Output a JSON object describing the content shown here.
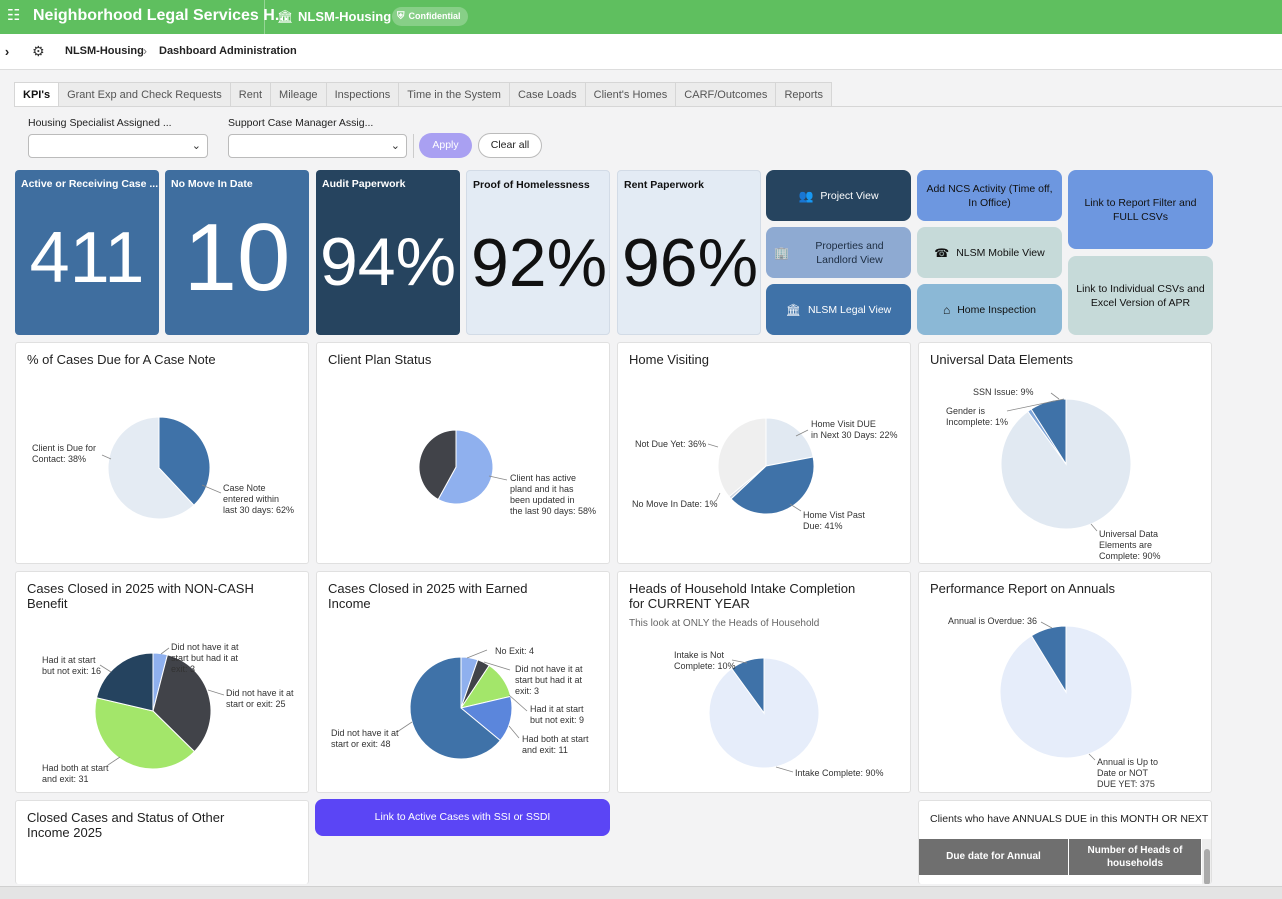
{
  "topbar": {
    "app_title": "Neighborhood Legal Services H...",
    "workspace": "NLSM-Housing",
    "badge": "Confidential",
    "brand_color": "#5fbf5f"
  },
  "nav": {
    "breadcrumb_app": "NLSM-Housing",
    "breadcrumb_page": "Dashboard Administration"
  },
  "tabs": [
    "KPI's",
    "Grant Exp and Check Requests",
    "Rent",
    "Mileage",
    "Inspections",
    "Time in the System",
    "Case Loads",
    "Client's Homes",
    "CARF/Outcomes",
    "Reports"
  ],
  "filters": {
    "housing_label": "Housing Specialist Assigned ...",
    "case_manager_label": "Support Case Manager Assig...",
    "apply": "Apply",
    "clear": "Clear all"
  },
  "kpis": [
    {
      "label": "Active or Receiving Case ...",
      "value": "411"
    },
    {
      "label": "No Move In Date",
      "value": "10"
    },
    {
      "label": "Audit Paperwork",
      "value": "94%"
    },
    {
      "label": "Proof of Homelessness",
      "value": "92%"
    },
    {
      "label": "Rent Paperwork",
      "value": "96%"
    }
  ],
  "nav_buttons": {
    "project_view": "Project View",
    "properties_view": "Properties and Landlord View",
    "legal_view": "NLSM Legal View",
    "add_ncs": "Add NCS Activity (Time off, In Office)",
    "mobile_view": "NLSM Mobile View",
    "home_inspection": "Home Inspection",
    "report_filter": "Link to Report Filter and FULL CSVs",
    "individual_csvs": "Link to Individual CSVs and Excel Version of APR"
  },
  "cards": {
    "case_note": {
      "title": "% of Cases Due for A Case Note"
    },
    "client_plan": {
      "title": "Client Plan Status"
    },
    "home_visiting": {
      "title": "Home Visiting"
    },
    "ude": {
      "title": "Universal Data Elements"
    },
    "noncash": {
      "title_line1": "Cases Closed in 2025 with NON-CASH",
      "title_line2": "Benefit"
    },
    "earned": {
      "title_line1": "Cases Closed in 2025 with Earned",
      "title_line2": "Income"
    },
    "hoh": {
      "title_line1": "Heads of Household Intake Completion",
      "title_line2": "for CURRENT YEAR",
      "subtitle": "This look at ONLY the Heads of Household"
    },
    "annuals": {
      "title": "Performance Report on Annuals"
    },
    "other_income": {
      "title_line1": "Closed Cases and Status of Other",
      "title_line2": "Income 2025"
    }
  },
  "link_ssi": "Link to Active Cases with SSI or SSDI",
  "annuals_table": {
    "title": "Clients who have ANNUALS DUE in this MONTH OR NEXT",
    "col1": "Due date for Annual",
    "col2_line1": "Number of Heads of",
    "col2_line2": "households"
  },
  "chart_data": [
    {
      "type": "pie",
      "title": "% of Cases Due for A Case Note",
      "slices": [
        {
          "label": "Client is Due for Contact: 38%",
          "value": 38,
          "color": "#3f72a8"
        },
        {
          "label": "Case Note entered within last 30 days: 62%",
          "value": 62,
          "color": "#e4ebf3"
        }
      ]
    },
    {
      "type": "pie",
      "title": "Client Plan Status",
      "slices": [
        {
          "label": "Client has active pland and it has been updated in the last 90 days: 58%",
          "value": 58,
          "color": "#8fb0ee"
        },
        {
          "label": "",
          "value": 42,
          "color": "#414349"
        }
      ]
    },
    {
      "type": "pie",
      "title": "Home Visiting",
      "slices": [
        {
          "label": "Home Visit DUE in Next 30 Days: 22%",
          "value": 22,
          "color": "#e1e9f2"
        },
        {
          "label": "Home Vist Past Due: 41%",
          "value": 41,
          "color": "#3f72a8"
        },
        {
          "label": "No Move In Date: 1%",
          "value": 1,
          "color": "#cfd7e2"
        },
        {
          "label": "Not Due Yet: 36%",
          "value": 36,
          "color": "#efefef"
        }
      ]
    },
    {
      "type": "pie",
      "title": "Universal Data Elements",
      "slices": [
        {
          "label": "Universal Data Elements are Complete: 90%",
          "value": 90,
          "color": "#e1e9f2"
        },
        {
          "label": "Gender is Incomplete: 1%",
          "value": 1,
          "color": "#7fa5d8"
        },
        {
          "label": "SSN Issue: 9%",
          "value": 9,
          "color": "#3f72a8"
        }
      ]
    },
    {
      "type": "pie",
      "title": "Cases Closed in 2025 with NON-CASH Benefit",
      "slices": [
        {
          "label": "Did not have it at start but had it at exit: 3",
          "value": 3,
          "color": "#8fb0ee"
        },
        {
          "label": "Did not have it at start or exit: 25",
          "value": 25,
          "color": "#414349"
        },
        {
          "label": "Had both at start and exit: 31",
          "value": 31,
          "color": "#a3e66a"
        },
        {
          "label": "Had it at start but not exit: 16",
          "value": 16,
          "color": "#25435f"
        }
      ]
    },
    {
      "type": "pie",
      "title": "Cases Closed in 2025 with Earned Income",
      "slices": [
        {
          "label": "No Exit: 4",
          "value": 4,
          "color": "#8fb0ee"
        },
        {
          "label": "Did not have it at start but had it at exit: 3",
          "value": 3,
          "color": "#414349"
        },
        {
          "label": "Had it at start but not exit: 9",
          "value": 9,
          "color": "#a3e66a"
        },
        {
          "label": "Had both at start and exit: 11",
          "value": 11,
          "color": "#5b86dc"
        },
        {
          "label": "Did not have it at start or exit: 48",
          "value": 48,
          "color": "#3f72a8"
        }
      ]
    },
    {
      "type": "pie",
      "title": "Heads of Household Intake Completion for CURRENT YEAR",
      "slices": [
        {
          "label": "Intake Complete: 90%",
          "value": 90,
          "color": "#e6edfa"
        },
        {
          "label": "Intake is Not Complete: 10%",
          "value": 10,
          "color": "#3f72a8"
        }
      ]
    },
    {
      "type": "pie",
      "title": "Performance Report on Annuals",
      "slices": [
        {
          "label": "Annual is Up to Date or NOT DUE YET: 375",
          "value": 375,
          "color": "#e6edfa"
        },
        {
          "label": "Annual is Overdue: 36",
          "value": 36,
          "color": "#3f72a8"
        }
      ]
    }
  ]
}
